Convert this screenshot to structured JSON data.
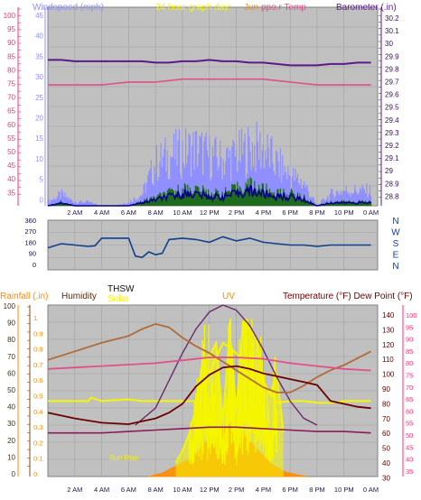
{
  "header": {
    "windspeed_label": "Windspeed (mph)",
    "graph_title": "24 hour graph day:",
    "graph_title_tail": "Jun",
    "temp_fragment": "ppo.r Temp",
    "barometer_label": "Barometer (.in)"
  },
  "panels": {
    "bottom_labels": {
      "rainfall": "Rainfall (.in)",
      "humidity": "Humidity",
      "thsw": "THSW",
      "solar": "Solar",
      "uv": "UV",
      "temp_dew": "Temperature (°F) Dew Point (°F)"
    },
    "sunrise_label": "Sun Rise"
  },
  "colors": {
    "plot_bg": "#c0c0c0",
    "grid": "#a0a0a0",
    "wind_gust": "#8f8fff",
    "wind_avg": "#000080",
    "wind_bars": "#1e6b1e",
    "barometer": "#5a1a8a",
    "outside_temp": "#e0508a",
    "direction": "#0f3f8f",
    "humidity": "#b06a3a",
    "solar": "#f5f500",
    "uv": "#ff8c00",
    "thsw": "#6b0000",
    "dewpoint": "#8b1a5a",
    "temp_bottom": "#e0508a",
    "rain_axis": "#ff8c00",
    "humidity_axis": "#8b4513",
    "sunline": "#6b2a6b"
  },
  "chart_data": [
    {
      "type": "line",
      "name": "wind_and_barometer",
      "x_ticks": [
        "2 AM",
        "4 AM",
        "6 AM",
        "8 AM",
        "10 AM",
        "12 PM",
        "2 PM",
        "4 PM",
        "6 PM",
        "8 PM",
        "10 PM",
        "0 AM"
      ],
      "left_axis_ticks": [
        "100",
        "95",
        "90",
        "85",
        "80",
        "75",
        "70",
        "65",
        "60",
        "55",
        "50",
        "45",
        "40",
        "35"
      ],
      "wind_axis_ticks": [
        "45",
        "40",
        "35",
        "30",
        "25",
        "20",
        "15",
        "10",
        "5",
        "0"
      ],
      "barometer_ticks": [
        "30.2",
        "30.1",
        "30",
        "29.9",
        "29.8",
        "29.7",
        "29.6",
        "29.5",
        "29.4",
        "29.3",
        "29.2",
        "29.1",
        "29",
        "28.9",
        "28.8"
      ],
      "wind_ylim": [
        0,
        47
      ],
      "baro_ylim": [
        28.8,
        30.27
      ],
      "x_range_hours": [
        0,
        24.5
      ],
      "series": [
        {
          "key": "barometer",
          "x": [
            0,
            1,
            2,
            3,
            4,
            5,
            6,
            7,
            8,
            8.5,
            9,
            10,
            11,
            12,
            13,
            14,
            15,
            16,
            17,
            18,
            19,
            20,
            21,
            22,
            23,
            24
          ],
          "values": [
            29.88,
            29.88,
            29.87,
            29.87,
            29.87,
            29.87,
            29.87,
            29.87,
            29.86,
            29.86,
            29.86,
            29.87,
            29.87,
            29.88,
            29.87,
            29.87,
            29.86,
            29.86,
            29.85,
            29.84,
            29.84,
            29.84,
            29.85,
            29.85,
            29.86,
            29.86
          ]
        },
        {
          "key": "outside_temp",
          "x": [
            0,
            2,
            4,
            6,
            8,
            10,
            12,
            14,
            16,
            18,
            20,
            22,
            24
          ],
          "values": [
            74,
            74,
            74,
            75,
            75,
            76,
            76,
            76,
            76,
            75,
            74,
            74,
            74
          ]
        },
        {
          "key": "wind_gust_profile",
          "x": [
            0,
            1,
            2,
            3,
            4,
            5,
            6,
            7,
            8,
            9,
            10,
            11,
            12,
            13,
            14,
            15,
            16,
            17,
            18,
            19,
            20,
            21,
            22,
            23,
            24
          ],
          "values": [
            1,
            3,
            1,
            1,
            0,
            0,
            1,
            3,
            11,
            13,
            14,
            15,
            13,
            12,
            13,
            15,
            15,
            11,
            8,
            6,
            0,
            3,
            4,
            4,
            4
          ]
        },
        {
          "key": "wind_avg_profile",
          "x": [
            0,
            1,
            2,
            3,
            4,
            5,
            6,
            7,
            8,
            9,
            10,
            11,
            12,
            13,
            14,
            15,
            16,
            17,
            18,
            19,
            20,
            21,
            22,
            23,
            24
          ],
          "values": [
            0,
            1,
            0,
            0,
            0,
            0,
            0,
            1,
            2,
            3,
            4,
            4,
            3,
            3,
            4,
            5,
            4,
            3,
            3,
            2,
            0,
            1,
            1,
            1,
            1
          ]
        }
      ]
    },
    {
      "type": "line",
      "name": "wind_direction",
      "direction_ticks": [
        "360",
        "270",
        "180",
        "90",
        "0"
      ],
      "compass_labels": [
        "N",
        "W",
        "S",
        "E",
        "N"
      ],
      "ylim": [
        0,
        360
      ],
      "x_range_hours": [
        0,
        24.5
      ],
      "series": [
        {
          "key": "direction",
          "x": [
            0,
            1,
            2,
            3,
            3.5,
            4,
            5,
            6,
            6.5,
            7,
            7.5,
            8,
            8.5,
            9,
            10,
            11,
            12,
            13,
            14,
            15,
            16,
            17,
            18,
            19,
            20,
            21,
            22,
            23,
            24
          ],
          "values": [
            160,
            190,
            180,
            170,
            175,
            230,
            230,
            230,
            100,
            90,
            130,
            110,
            120,
            220,
            230,
            220,
            200,
            240,
            210,
            230,
            200,
            190,
            180,
            180,
            170,
            180,
            180,
            180,
            180
          ]
        }
      ]
    },
    {
      "type": "line",
      "name": "temperature_solar_uv",
      "x_ticks": [
        "2 AM",
        "4 AM",
        "6 AM",
        "8 AM",
        "10 AM",
        "12 PM",
        "2 PM",
        "4 PM",
        "6 PM",
        "8 PM",
        "10 PM",
        "0 AM"
      ],
      "left_ticks": [
        "100",
        "90",
        "80",
        "70",
        "60",
        "50",
        "40",
        "30",
        "20",
        "10",
        "0"
      ],
      "rain_ticks": [
        "1",
        "0.9",
        "0.8",
        "0.7",
        "0.6",
        "0.5",
        "0.4",
        "0.3",
        "0.2",
        "0.1",
        "0"
      ],
      "temp_ticks": [
        "140",
        "130",
        "120",
        "110",
        "100",
        "90",
        "80",
        "70",
        "60",
        "50",
        "40",
        "30"
      ],
      "dew_ticks": [
        "100",
        "95",
        "90",
        "85",
        "80",
        "75",
        "70",
        "65",
        "60",
        "55",
        "50",
        "45",
        "40",
        "35"
      ],
      "humidity_ylim": [
        0,
        100
      ],
      "temp_ylim": [
        30,
        148
      ],
      "x_range_hours": [
        0,
        24.5
      ],
      "series": [
        {
          "key": "humidity",
          "x": [
            0,
            2,
            4,
            6,
            7,
            8,
            9,
            10,
            11,
            12,
            13,
            14,
            15,
            16,
            17,
            18,
            19,
            20,
            21,
            22,
            23,
            24
          ],
          "values": [
            68,
            73,
            78,
            82,
            86,
            89,
            87,
            81,
            76,
            72,
            67,
            62,
            57,
            52,
            49,
            49,
            53,
            58,
            62,
            65,
            69,
            73
          ]
        },
        {
          "key": "thsw",
          "x": [
            0,
            2,
            4,
            6,
            7,
            8,
            9,
            10,
            11,
            12,
            13,
            14,
            15,
            16,
            17,
            18,
            19,
            20,
            21,
            22,
            23,
            24
          ],
          "values": [
            74,
            70,
            67,
            66,
            68,
            70,
            74,
            80,
            92,
            100,
            105,
            106,
            104,
            101,
            99,
            97,
            95,
            93,
            82,
            80,
            78,
            77
          ]
        },
        {
          "key": "temp_bottom",
          "x": [
            0,
            2,
            4,
            6,
            8,
            10,
            12,
            14,
            16,
            18,
            20,
            22,
            24
          ],
          "values": [
            104,
            105,
            106,
            107,
            108,
            110,
            112,
            112,
            111,
            108,
            106,
            104,
            103
          ]
        },
        {
          "key": "dewpoint",
          "x": [
            0,
            2,
            4,
            6,
            8,
            10,
            12,
            14,
            16,
            18,
            20,
            22,
            24
          ],
          "values": [
            60,
            60,
            60,
            61,
            62,
            63,
            64,
            64,
            63,
            62,
            61,
            61,
            60
          ]
        },
        {
          "key": "sunline",
          "x": [
            6.5,
            8,
            9,
            10,
            11,
            12,
            13,
            14,
            15,
            16,
            17,
            18,
            19,
            20
          ],
          "values": [
            30,
            40,
            56,
            72,
            86,
            96,
            100,
            97,
            88,
            74,
            58,
            44,
            34,
            30
          ]
        },
        {
          "key": "solar_left",
          "x": [
            0,
            1,
            3,
            3.2,
            4,
            6,
            7,
            8,
            9,
            10,
            11,
            12,
            13,
            14,
            15,
            16,
            17,
            18,
            19,
            20,
            21,
            22,
            23,
            24
          ],
          "values": [
            44,
            44,
            44,
            46,
            44,
            45,
            44,
            44,
            44,
            44,
            44,
            60,
            78,
            72,
            62,
            55,
            43,
            44,
            44,
            43,
            43,
            44,
            44,
            44
          ]
        },
        {
          "key": "uv_area",
          "x": [
            7.5,
            8.5,
            9.5,
            10.5,
            11.5,
            12.5,
            13.5,
            14.5,
            15.5,
            16.5,
            17.5,
            18.5,
            19.2
          ],
          "values": [
            0,
            2,
            6,
            10,
            18,
            28,
            30,
            26,
            16,
            8,
            3,
            1,
            0
          ]
        },
        {
          "key": "solar_trace",
          "x": [
            9.5,
            10,
            10.5,
            11,
            11.5,
            12,
            12.5,
            13,
            13.5,
            14,
            14.5,
            15,
            15.5,
            16,
            16.5,
            17,
            17.5
          ],
          "values": [
            8,
            15,
            25,
            40,
            68,
            70,
            78,
            32,
            85,
            38,
            90,
            86,
            80,
            56,
            48,
            60,
            26
          ]
        }
      ]
    }
  ]
}
